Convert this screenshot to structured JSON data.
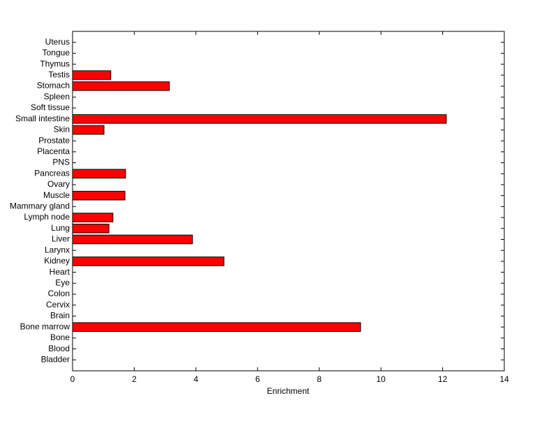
{
  "chart_data": {
    "type": "barh",
    "xlabel": "Enrichment",
    "categories": [
      "Bladder",
      "Blood",
      "Bone",
      "Bone marrow",
      "Brain",
      "Cervix",
      "Colon",
      "Eye",
      "Heart",
      "Kidney",
      "Larynx",
      "Liver",
      "Lung",
      "Lymph node",
      "Mammary gland",
      "Muscle",
      "Ovary",
      "Pancreas",
      "PNS",
      "Placenta",
      "Prostate",
      "Skin",
      "Small intestine",
      "Soft tissue",
      "Spleen",
      "Stomach",
      "Testis",
      "Thymus",
      "Tongue",
      "Uterus"
    ],
    "values": [
      0,
      0,
      0,
      9.34,
      0,
      0,
      0,
      0,
      0,
      4.91,
      0,
      3.89,
      1.18,
      1.31,
      0,
      1.7,
      0,
      1.72,
      0,
      0,
      0,
      1.02,
      12.12,
      0,
      0,
      3.14,
      1.24,
      0,
      0,
      0
    ],
    "color": "#ff0000",
    "xlim": [
      0,
      14
    ],
    "xticks": [
      0,
      2,
      4,
      6,
      8,
      10,
      12,
      14
    ],
    "grid": false
  }
}
